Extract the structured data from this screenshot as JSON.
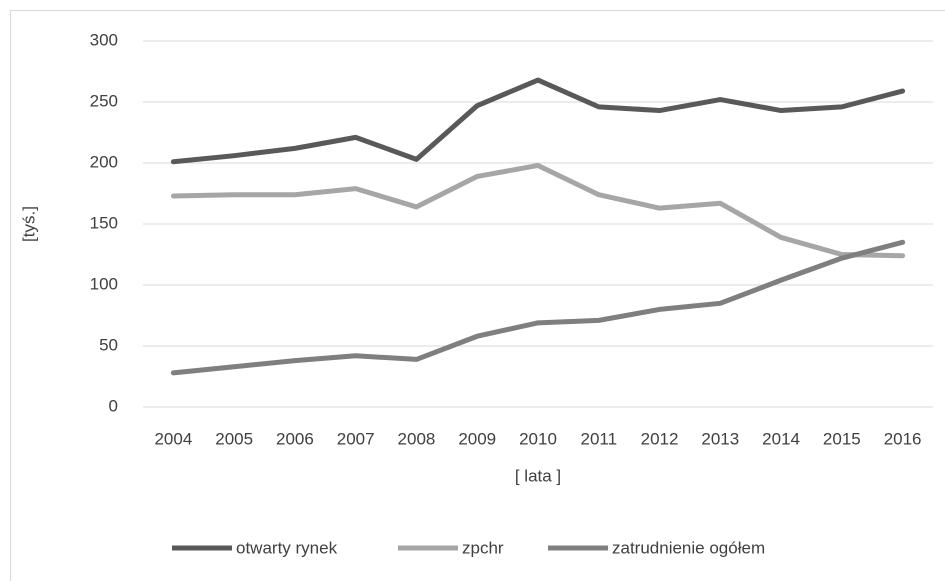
{
  "chart_data": {
    "type": "line",
    "x_label": "[ lata ]",
    "y_label": "[tyś.]",
    "categories": [
      "2004",
      "2005",
      "2006",
      "2007",
      "2008",
      "2009",
      "2010",
      "2011",
      "2012",
      "2013",
      "2014",
      "2015",
      "2016"
    ],
    "series": [
      {
        "name": "otwarty rynek",
        "color": "#595959",
        "values": [
          201,
          206,
          212,
          221,
          203,
          247,
          268,
          246,
          243,
          252,
          243,
          246,
          259
        ]
      },
      {
        "name": "zpchr",
        "color": "#a6a6a6",
        "values": [
          173,
          174,
          174,
          179,
          164,
          189,
          198,
          174,
          163,
          167,
          139,
          125,
          124
        ]
      },
      {
        "name": "zatrudnienie ogółem",
        "color": "#7f7f7f",
        "values": [
          28,
          33,
          38,
          42,
          39,
          58,
          69,
          71,
          80,
          85,
          104,
          122,
          135
        ]
      }
    ],
    "ylim": [
      0,
      300
    ],
    "yticks": [
      0,
      50,
      100,
      150,
      200,
      250,
      300
    ],
    "grid": true,
    "legend": "bottom"
  }
}
